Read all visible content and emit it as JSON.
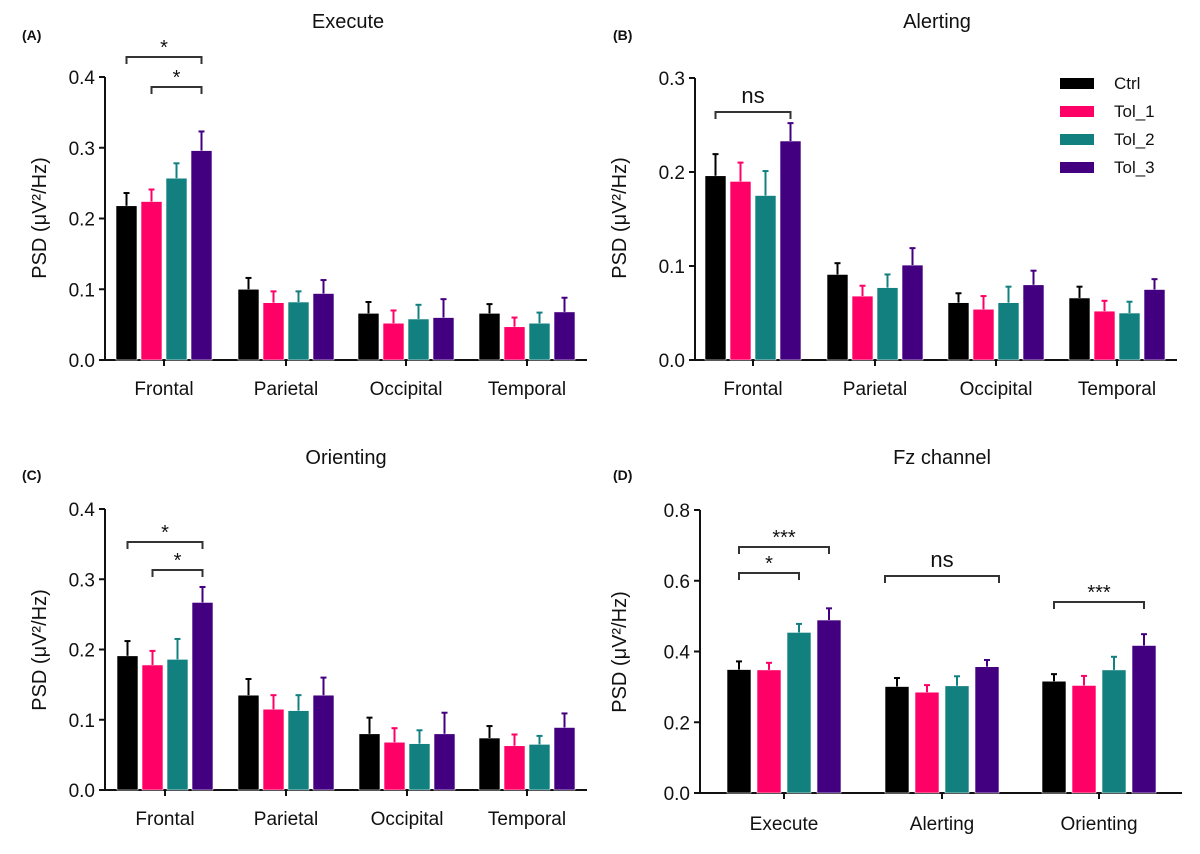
{
  "colors": {
    "Ctrl": "#000000",
    "Tol_1": "#ff0066",
    "Tol_2": "#138080",
    "Tol_3": "#420080"
  },
  "legend": [
    "Ctrl",
    "Tol_1",
    "Tol_2",
    "Tol_3"
  ],
  "chart_data": [
    {
      "type": "bar",
      "panel": "(A)",
      "title": "Execute",
      "ylabel": "PSD (μV²/Hz)",
      "ylim": [
        0,
        0.4
      ],
      "yticks": [
        "0.0",
        "0.1",
        "0.2",
        "0.3",
        "0.4"
      ],
      "categories": [
        "Frontal",
        "Parietal",
        "Occipital",
        "Temporal"
      ],
      "series": [
        {
          "name": "Ctrl",
          "values": [
            0.218,
            0.1,
            0.066,
            0.066
          ],
          "errors": [
            0.018,
            0.016,
            0.016,
            0.013
          ]
        },
        {
          "name": "Tol_1",
          "values": [
            0.224,
            0.081,
            0.052,
            0.047
          ],
          "errors": [
            0.017,
            0.016,
            0.018,
            0.013
          ]
        },
        {
          "name": "Tol_2",
          "values": [
            0.257,
            0.082,
            0.058,
            0.052
          ],
          "errors": [
            0.021,
            0.015,
            0.02,
            0.015
          ]
        },
        {
          "name": "Tol_3",
          "values": [
            0.296,
            0.094,
            0.06,
            0.068
          ],
          "errors": [
            0.027,
            0.019,
            0.026,
            0.02
          ]
        }
      ],
      "significance": [
        {
          "category": "Frontal",
          "from": "Ctrl",
          "to": "Tol_3",
          "label": "*"
        },
        {
          "category": "Frontal",
          "from": "Tol_1",
          "to": "Tol_3",
          "label": "*"
        }
      ]
    },
    {
      "type": "bar",
      "panel": "(B)",
      "title": "Alerting",
      "ylabel": "PSD (μV²/Hz)",
      "ylim": [
        0,
        0.3
      ],
      "yticks": [
        "0.0",
        "0.1",
        "0.2",
        "0.3"
      ],
      "categories": [
        "Frontal",
        "Parietal",
        "Occipital",
        "Temporal"
      ],
      "series": [
        {
          "name": "Ctrl",
          "values": [
            0.196,
            0.091,
            0.061,
            0.066
          ],
          "errors": [
            0.023,
            0.012,
            0.01,
            0.012
          ]
        },
        {
          "name": "Tol_1",
          "values": [
            0.19,
            0.068,
            0.054,
            0.052
          ],
          "errors": [
            0.02,
            0.011,
            0.014,
            0.011
          ]
        },
        {
          "name": "Tol_2",
          "values": [
            0.175,
            0.077,
            0.061,
            0.05
          ],
          "errors": [
            0.026,
            0.014,
            0.017,
            0.012
          ]
        },
        {
          "name": "Tol_3",
          "values": [
            0.233,
            0.101,
            0.08,
            0.075
          ],
          "errors": [
            0.019,
            0.018,
            0.015,
            0.011
          ]
        }
      ],
      "significance": [
        {
          "category": "Frontal",
          "from": "Ctrl",
          "to": "Tol_3",
          "label": "ns"
        }
      ],
      "legend_position": "top-right"
    },
    {
      "type": "bar",
      "panel": "(C)",
      "title": "Orienting",
      "ylabel": "PSD (μV²/Hz)",
      "ylim": [
        0,
        0.4
      ],
      "yticks": [
        "0.0",
        "0.1",
        "0.2",
        "0.3",
        "0.4"
      ],
      "categories": [
        "Frontal",
        "Parietal",
        "Occipital",
        "Temporal"
      ],
      "series": [
        {
          "name": "Ctrl",
          "values": [
            0.191,
            0.135,
            0.08,
            0.074
          ],
          "errors": [
            0.021,
            0.023,
            0.023,
            0.017
          ]
        },
        {
          "name": "Tol_1",
          "values": [
            0.178,
            0.115,
            0.068,
            0.063
          ],
          "errors": [
            0.02,
            0.02,
            0.02,
            0.016
          ]
        },
        {
          "name": "Tol_2",
          "values": [
            0.186,
            0.113,
            0.066,
            0.065
          ],
          "errors": [
            0.029,
            0.022,
            0.019,
            0.012
          ]
        },
        {
          "name": "Tol_3",
          "values": [
            0.267,
            0.135,
            0.08,
            0.089
          ],
          "errors": [
            0.022,
            0.025,
            0.03,
            0.02
          ]
        }
      ],
      "significance": [
        {
          "category": "Frontal",
          "from": "Ctrl",
          "to": "Tol_3",
          "label": "*"
        },
        {
          "category": "Frontal",
          "from": "Tol_1",
          "to": "Tol_3",
          "label": "*"
        }
      ]
    },
    {
      "type": "bar",
      "panel": "(D)",
      "title": "Fz channel",
      "ylabel": "PSD (μV²/Hz)",
      "ylim": [
        0,
        0.8
      ],
      "yticks": [
        "0.0",
        "0.2",
        "0.4",
        "0.6",
        "0.8"
      ],
      "categories": [
        "Execute",
        "Alerting",
        "Orienting"
      ],
      "series": [
        {
          "name": "Ctrl",
          "values": [
            0.349,
            0.301,
            0.316
          ],
          "errors": [
            0.023,
            0.024,
            0.02
          ]
        },
        {
          "name": "Tol_1",
          "values": [
            0.348,
            0.285,
            0.304
          ],
          "errors": [
            0.02,
            0.02,
            0.027
          ]
        },
        {
          "name": "Tol_2",
          "values": [
            0.454,
            0.303,
            0.348
          ],
          "errors": [
            0.024,
            0.027,
            0.037
          ]
        },
        {
          "name": "Tol_3",
          "values": [
            0.489,
            0.357,
            0.417
          ],
          "errors": [
            0.033,
            0.019,
            0.032
          ]
        }
      ],
      "significance": [
        {
          "category": "Execute",
          "from": "Ctrl",
          "to": "Tol_3",
          "label": "***"
        },
        {
          "category": "Execute",
          "from": "Ctrl",
          "to": "Tol_2",
          "label": "*"
        },
        {
          "category": "Alerting",
          "from": "Ctrl",
          "to": "Tol_3",
          "label": "ns"
        },
        {
          "category": "Orienting",
          "from": "Ctrl",
          "to": "Tol_3",
          "label": "***"
        }
      ]
    }
  ]
}
